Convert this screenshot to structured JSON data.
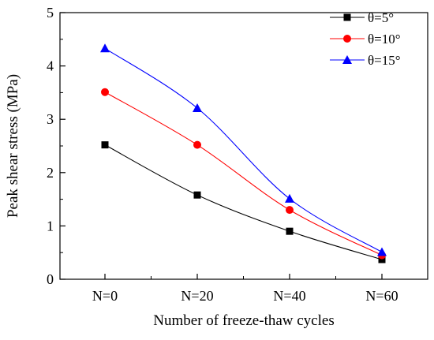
{
  "chart_data": {
    "type": "line",
    "xlabel": "Number of freeze-thaw cycles",
    "ylabel": "Peak shear stress (MPa)",
    "categories": [
      "N=0",
      "N=20",
      "N=40",
      "N=60"
    ],
    "ylim": [
      0,
      5
    ],
    "yticks": [
      "0",
      "1",
      "2",
      "3",
      "4",
      "5"
    ],
    "grid": false,
    "legend_position": "top-right",
    "series": [
      {
        "name": "θ=5°",
        "values": [
          2.52,
          1.58,
          0.9,
          0.37
        ],
        "color": "#000000",
        "marker": "square"
      },
      {
        "name": "θ=10°",
        "values": [
          3.51,
          2.52,
          1.3,
          0.45
        ],
        "color": "#ff0000",
        "marker": "circle"
      },
      {
        "name": "θ=15°",
        "values": [
          4.33,
          3.21,
          1.51,
          0.51
        ],
        "color": "#0000ff",
        "marker": "triangle"
      }
    ]
  }
}
